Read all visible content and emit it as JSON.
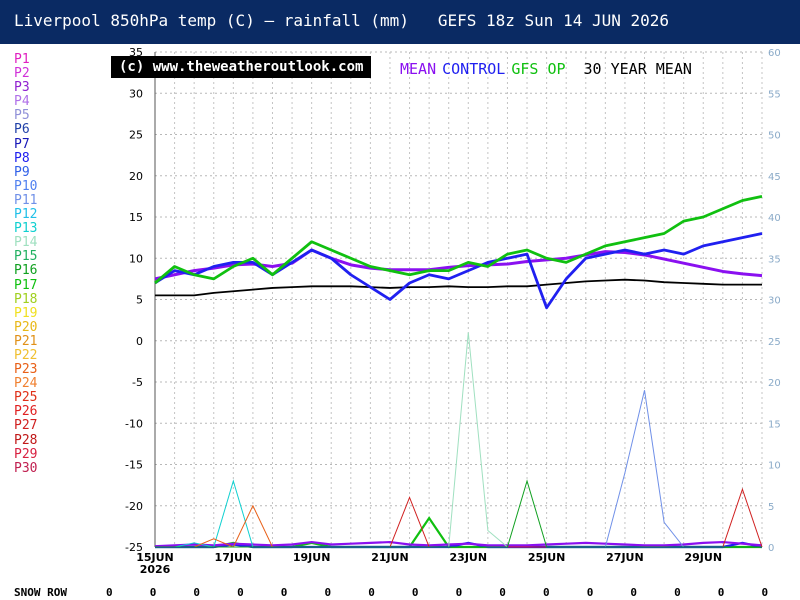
{
  "title": "Liverpool 850hPa temp (C) — rainfall (mm)   GEFS 18z Sun 14 JUN 2026",
  "copyright": "(c) www.theweatheroutlook.com",
  "legend_top": [
    {
      "label": "MEAN",
      "color": "#8a10f0"
    },
    {
      "label": "CONTROL",
      "color": "#2020f0"
    },
    {
      "label": "GFS OP",
      "color": "#10c010"
    },
    {
      "label": "30 YEAR MEAN",
      "color": "#000000"
    }
  ],
  "members": [
    {
      "label": "P1",
      "color": "#e020c0"
    },
    {
      "label": "P2",
      "color": "#d030d8"
    },
    {
      "label": "P3",
      "color": "#9020d0"
    },
    {
      "label": "P4",
      "color": "#b070e8"
    },
    {
      "label": "P5",
      "color": "#9090d8"
    },
    {
      "label": "P6",
      "color": "#2040a8"
    },
    {
      "label": "P7",
      "color": "#1818b8"
    },
    {
      "label": "P8",
      "color": "#2020f0"
    },
    {
      "label": "P9",
      "color": "#3060e8"
    },
    {
      "label": "P10",
      "color": "#5080f0"
    },
    {
      "label": "P11",
      "color": "#7090e8"
    },
    {
      "label": "P12",
      "color": "#20c0e8"
    },
    {
      "label": "P13",
      "color": "#10d0d0"
    },
    {
      "label": "P14",
      "color": "#a0e0c0"
    },
    {
      "label": "P15",
      "color": "#20b060"
    },
    {
      "label": "P16",
      "color": "#10a020"
    },
    {
      "label": "P17",
      "color": "#10c010"
    },
    {
      "label": "P18",
      "color": "#a0d020"
    },
    {
      "label": "P19",
      "color": "#f0e020"
    },
    {
      "label": "P20",
      "color": "#e8b818"
    },
    {
      "label": "P21",
      "color": "#e09018"
    },
    {
      "label": "P22",
      "color": "#f0c030"
    },
    {
      "label": "P23",
      "color": "#e86018"
    },
    {
      "label": "P24",
      "color": "#f08030"
    },
    {
      "label": "P25",
      "color": "#e03018"
    },
    {
      "label": "P26",
      "color": "#e02020"
    },
    {
      "label": "P27",
      "color": "#d02020"
    },
    {
      "label": "P28",
      "color": "#c01818"
    },
    {
      "label": "P29",
      "color": "#d82040"
    },
    {
      "label": "P30",
      "color": "#c02050"
    }
  ],
  "snow_row": {
    "label": "SNOW ROW",
    "values": [
      "0",
      "0",
      "0",
      "0",
      "0",
      "0",
      "0",
      "0",
      "0",
      "0",
      "0",
      "0",
      "0",
      "0",
      "0",
      "0"
    ]
  },
  "chart_data": {
    "type": "line",
    "x": [
      "15JUN",
      "15JUN 18z",
      "16JUN",
      "16JUN 18z",
      "17JUN",
      "17JUN 18z",
      "18JUN",
      "18JUN 18z",
      "19JUN",
      "19JUN 18z",
      "20JUN",
      "20JUN 18z",
      "21JUN",
      "21JUN 18z",
      "22JUN",
      "22JUN 18z",
      "23JUN",
      "23JUN 18z",
      "24JUN",
      "24JUN 18z",
      "25JUN",
      "25JUN 18z",
      "26JUN",
      "26JUN 18z",
      "27JUN",
      "27JUN 18z",
      "28JUN",
      "28JUN 18z",
      "29JUN",
      "29JUN 18z",
      "30JUN",
      "30JUN 18z"
    ],
    "x_tick_labels": [
      "15JUN",
      "17JUN",
      "19JUN",
      "21JUN",
      "23JUN",
      "25JUN",
      "27JUN",
      "29JUN"
    ],
    "x_tick_year": "2026",
    "ylim": [
      -25,
      35
    ],
    "y_ticks": [
      35,
      30,
      25,
      20,
      15,
      10,
      5,
      0,
      -5,
      -10,
      -15,
      -20,
      -25
    ],
    "y2lim": [
      0,
      60
    ],
    "y2_ticks": [
      60,
      55,
      50,
      45,
      40,
      35,
      30,
      25,
      20,
      15,
      10,
      5,
      0
    ],
    "grid": true,
    "series": [
      {
        "name": "30 YEAR MEAN",
        "color": "#000000",
        "width": 1.8,
        "values": [
          5.5,
          5.5,
          5.5,
          5.8,
          6.0,
          6.2,
          6.4,
          6.5,
          6.6,
          6.6,
          6.6,
          6.5,
          6.4,
          6.5,
          6.5,
          6.6,
          6.5,
          6.5,
          6.6,
          6.6,
          6.8,
          7.0,
          7.2,
          7.3,
          7.4,
          7.3,
          7.1,
          7.0,
          6.9,
          6.8,
          6.8,
          6.8
        ]
      },
      {
        "name": "MEAN",
        "color": "#8a10f0",
        "width": 3,
        "values": [
          7.5,
          8.0,
          8.5,
          8.8,
          9.2,
          9.3,
          9.0,
          9.4,
          11.0,
          10.0,
          9.2,
          8.8,
          8.6,
          8.6,
          8.6,
          8.9,
          9.1,
          9.2,
          9.3,
          9.6,
          9.8,
          10.0,
          10.4,
          10.8,
          10.7,
          10.4,
          9.9,
          9.4,
          8.9,
          8.4,
          8.1,
          7.9
        ]
      },
      {
        "name": "CONTROL",
        "color": "#2020f0",
        "width": 2.8,
        "values": [
          7.0,
          8.5,
          8.0,
          9.0,
          9.5,
          9.5,
          8.0,
          9.5,
          11.0,
          10.0,
          8.0,
          6.5,
          5.0,
          7.0,
          8.0,
          7.5,
          8.5,
          9.5,
          10.0,
          10.5,
          4.0,
          7.5,
          10.0,
          10.5,
          11.0,
          10.5,
          11.0,
          10.5,
          11.5,
          12.0,
          12.5,
          13.0
        ]
      },
      {
        "name": "GFS OP",
        "color": "#10c010",
        "width": 2.8,
        "values": [
          7.0,
          9.0,
          8.0,
          7.5,
          9.0,
          10.0,
          8.0,
          10.0,
          12.0,
          11.0,
          10.0,
          9.0,
          8.5,
          8.0,
          8.5,
          8.5,
          9.5,
          9.0,
          10.5,
          11.0,
          10.0,
          9.5,
          10.5,
          11.5,
          12.0,
          12.5,
          13.0,
          14.5,
          15.0,
          16.0,
          17.0,
          17.5
        ]
      }
    ],
    "rainfall_series": [
      {
        "name": "GFS OP",
        "color": "#10c010",
        "values": [
          0,
          0,
          0,
          0,
          0.5,
          0,
          0,
          0,
          0.5,
          0,
          0,
          0,
          0,
          0,
          3.5,
          0,
          0,
          0,
          0,
          0,
          0,
          0,
          0,
          0,
          0,
          0,
          0,
          0,
          0,
          0,
          0,
          0
        ]
      },
      {
        "name": "CONTROL",
        "color": "#2020f0",
        "values": [
          0,
          0,
          0,
          0,
          0.3,
          0,
          0,
          0,
          0,
          0,
          0,
          0,
          0,
          0,
          0,
          0,
          0.5,
          0,
          0,
          0,
          0,
          0,
          0,
          0,
          0,
          0,
          0,
          0,
          0,
          0,
          0.5,
          0
        ]
      },
      {
        "name": "MEAN",
        "color": "#8a10f0",
        "values": [
          0.1,
          0.2,
          0.3,
          0.2,
          0.4,
          0.3,
          0.2,
          0.3,
          0.6,
          0.3,
          0.4,
          0.5,
          0.6,
          0.3,
          0.2,
          0.3,
          0.4,
          0.2,
          0.2,
          0.2,
          0.3,
          0.4,
          0.5,
          0.4,
          0.3,
          0.2,
          0.2,
          0.3,
          0.5,
          0.6,
          0.4,
          0.2
        ]
      },
      {
        "name": "P13",
        "color": "#10d0d0",
        "values": [
          0,
          0,
          0.5,
          0,
          8,
          0,
          0,
          0,
          0,
          0,
          0,
          0,
          0,
          0,
          0,
          0,
          0,
          0,
          0,
          0,
          0,
          0,
          0,
          0,
          0,
          0,
          0,
          0,
          0,
          0,
          0,
          0
        ]
      },
      {
        "name": "P14",
        "color": "#a0e0c0",
        "values": [
          0,
          0,
          0,
          0,
          0,
          0,
          0,
          0,
          0,
          0,
          0,
          0,
          0,
          0,
          0,
          0,
          26,
          2,
          0,
          0,
          0,
          0,
          0,
          0,
          0,
          0,
          0,
          0,
          0,
          0,
          0,
          0
        ]
      },
      {
        "name": "P11",
        "color": "#7090e8",
        "values": [
          0,
          0,
          0,
          0,
          0,
          0,
          0,
          0,
          0,
          0,
          0,
          0,
          0,
          0,
          0,
          0,
          0,
          0,
          0,
          0,
          0,
          0,
          0,
          0,
          9,
          19,
          3,
          0,
          0,
          0,
          0,
          0
        ]
      },
      {
        "name": "P23",
        "color": "#e86018",
        "values": [
          0,
          0,
          0,
          1,
          0,
          5,
          0,
          0,
          0,
          0,
          0,
          0,
          0,
          0,
          0,
          0,
          0,
          0,
          0,
          0,
          0,
          0,
          0,
          0,
          0,
          0,
          0,
          0,
          0,
          0,
          0,
          0
        ]
      },
      {
        "name": "P27",
        "color": "#d02020",
        "values": [
          0,
          0,
          0,
          0,
          0,
          0,
          0,
          0,
          0,
          0,
          0,
          0,
          0,
          6,
          0,
          0,
          0,
          0,
          0,
          0,
          0,
          0,
          0,
          0,
          0,
          0,
          0,
          0,
          0,
          0,
          7,
          0
        ]
      },
      {
        "name": "P16",
        "color": "#10a020",
        "values": [
          0,
          0,
          0,
          0,
          0,
          0,
          0,
          0,
          0,
          0,
          0,
          0,
          0,
          0,
          0,
          0,
          0,
          0,
          0,
          8,
          0,
          0,
          0,
          0,
          0,
          0,
          0,
          0,
          0,
          0,
          0,
          0
        ]
      }
    ]
  }
}
